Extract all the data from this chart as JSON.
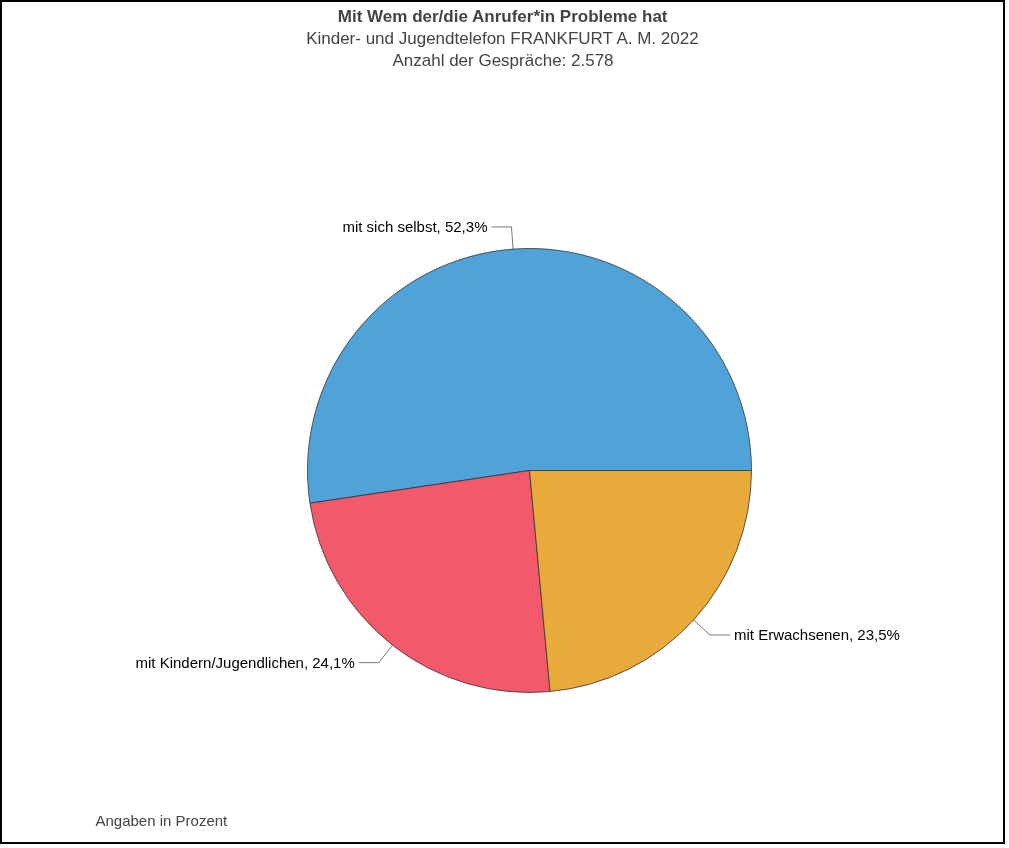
{
  "chart_data": {
    "type": "pie",
    "title": "Mit Wem der/die Anrufer*in Probleme hat",
    "subtitle": "Kinder- und Jugendtelefon FRANKFURT A. M. 2022\nAnzahl der Gespräche: 2.578",
    "categories": [
      "mit sich selbst",
      "mit Kindern/Jugendlichen",
      "mit Erwachsenen"
    ],
    "values": [
      52.3,
      24.1,
      23.5
    ],
    "colors": [
      "#4fa3d9",
      "#f2596b",
      "#e8aa3a"
    ],
    "value_labels": [
      ", 52,3%",
      ", 24,1%",
      ", 23,5%"
    ],
    "annotations": [
      "Angaben in Prozent"
    ]
  }
}
